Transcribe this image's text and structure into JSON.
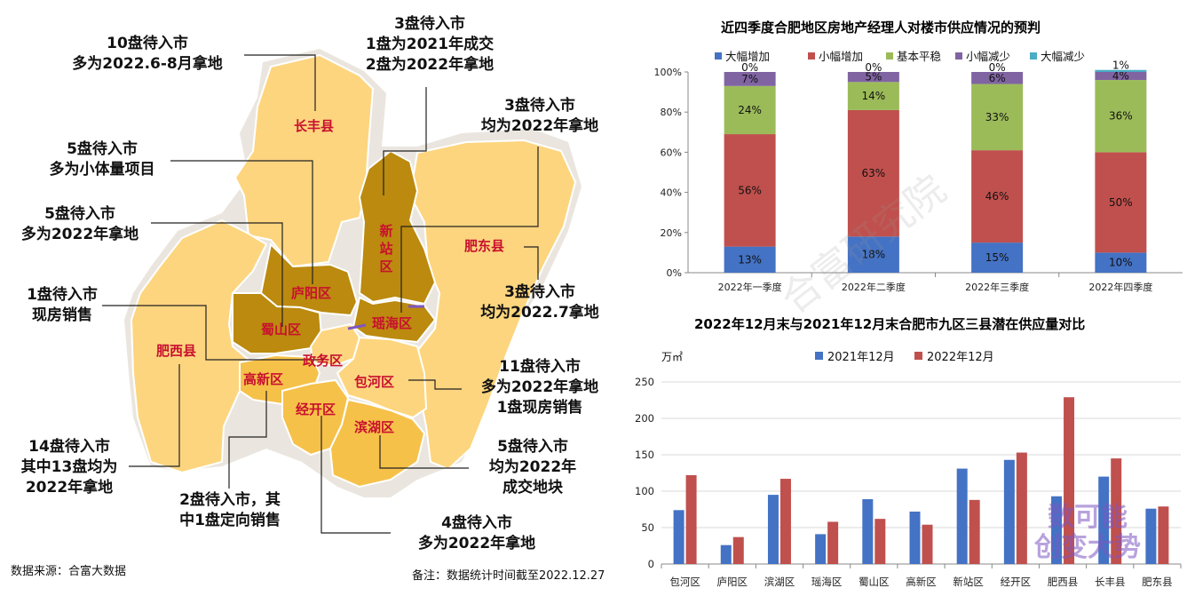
{
  "map": {
    "districts": [
      {
        "key": "changfeng",
        "label": "长丰县"
      },
      {
        "key": "xinzhan",
        "label": "新站区"
      },
      {
        "key": "feidong",
        "label": "肥东县"
      },
      {
        "key": "luyang",
        "label": "庐阳区"
      },
      {
        "key": "shushan",
        "label": "蜀山区"
      },
      {
        "key": "yaohai",
        "label": "瑶海区"
      },
      {
        "key": "zhengwu",
        "label": "政务区"
      },
      {
        "key": "feixi",
        "label": "肥西县"
      },
      {
        "key": "gaoxin",
        "label": "高新区"
      },
      {
        "key": "baohe",
        "label": "包河区"
      },
      {
        "key": "jingkai",
        "label": "经开区"
      },
      {
        "key": "binhu",
        "label": "滨湖区"
      }
    ],
    "callouts": [
      {
        "key": "changfeng",
        "lines": [
          "10盘待入市",
          "多为2022.6-8月拿地"
        ]
      },
      {
        "key": "xinzhan",
        "lines": [
          "3盘待入市",
          "1盘为2021年成交",
          "2盘为2022年拿地"
        ]
      },
      {
        "key": "yaohai",
        "lines": [
          "3盘待入市",
          "均为2022年拿地"
        ]
      },
      {
        "key": "luyang",
        "lines": [
          "5盘待入市",
          "多为小体量项目"
        ]
      },
      {
        "key": "shushan",
        "lines": [
          "5盘待入市",
          "多为2022年拿地"
        ]
      },
      {
        "key": "zhengwu",
        "lines": [
          "1盘待入市",
          "现房销售"
        ]
      },
      {
        "key": "feidong",
        "lines": [
          "3盘待入市",
          "均为2022.7拿地"
        ]
      },
      {
        "key": "baohe",
        "lines": [
          "11盘待入市",
          "多为2022年拿地",
          "1盘现房销售"
        ]
      },
      {
        "key": "feixi",
        "lines": [
          "14盘待入市",
          "其中13盘均为",
          "2022年拿地"
        ]
      },
      {
        "key": "gaoxin",
        "lines": [
          "2盘待入市，其",
          "中1盘定向销售"
        ]
      },
      {
        "key": "binhu",
        "lines": [
          "5盘待入市",
          "均为2022年",
          "成交地块"
        ]
      },
      {
        "key": "jingkai",
        "lines": [
          "4盘待入市",
          "多为2022年拿地"
        ]
      }
    ]
  },
  "footer": {
    "source": "数据来源：合富大数据",
    "note": "备注：数据统计时间截至2022.12.27"
  },
  "watermark": {
    "diagonal": "合富研究院",
    "logo_top": "数可能",
    "logo_bottom": "创变大势"
  },
  "colors": {
    "big_increase": "#4472c4",
    "small_increase": "#c0504d",
    "balanced": "#9bbb59",
    "small_decrease": "#8064a2",
    "big_decrease": "#4bacc6",
    "dec2021": "#4472c4",
    "dec2022": "#c0504d"
  },
  "chart_data": [
    {
      "type": "bar",
      "stacked": "percent",
      "title": "近四季度合肥地区房地产经理人对楼市供应情况的预判",
      "categories": [
        "2022年一季度",
        "2022年二季度",
        "2022年三季度",
        "2022年四季度"
      ],
      "series": [
        {
          "name": "大幅增加",
          "values": [
            13,
            18,
            15,
            10
          ],
          "labels": [
            "13%",
            "18%",
            "15%",
            "10%"
          ]
        },
        {
          "name": "小幅增加",
          "values": [
            56,
            63,
            46,
            50
          ],
          "labels": [
            "56%",
            "63%",
            "46%",
            "50%"
          ]
        },
        {
          "name": "基本平稳",
          "values": [
            24,
            14,
            33,
            36
          ],
          "labels": [
            "24%",
            "14%",
            "33%",
            "36%"
          ]
        },
        {
          "name": "小幅减少",
          "values": [
            7,
            5,
            6,
            4
          ],
          "labels": [
            "7%",
            "5%",
            "6%",
            "4%"
          ]
        },
        {
          "name": "大幅减少",
          "values": [
            0,
            0,
            0,
            1
          ],
          "labels": [
            "0%",
            "0%",
            "0%",
            "1%"
          ]
        }
      ],
      "yticks": [
        "0%",
        "20%",
        "40%",
        "60%",
        "80%",
        "100%"
      ],
      "ylim": [
        0,
        100
      ],
      "legend": "top",
      "grid": false
    },
    {
      "type": "bar",
      "title": "2022年12月末与2021年12月末合肥市九区三县潜在供应量对比",
      "ylabel": "万㎡",
      "categories": [
        "包河区",
        "庐阳区",
        "滨湖区",
        "瑶海区",
        "蜀山区",
        "高新区",
        "新站区",
        "经开区",
        "肥西县",
        "长丰县",
        "肥东县"
      ],
      "series": [
        {
          "name": "2021年12月",
          "values": [
            74,
            26,
            95,
            41,
            89,
            72,
            131,
            143,
            93,
            120,
            76
          ]
        },
        {
          "name": "2022年12月",
          "values": [
            122,
            37,
            117,
            58,
            62,
            54,
            88,
            153,
            229,
            145,
            79
          ]
        }
      ],
      "yticks": [
        "0",
        "50",
        "100",
        "150",
        "200",
        "250"
      ],
      "ylim": [
        0,
        250
      ],
      "legend": "top",
      "grid": true
    }
  ]
}
